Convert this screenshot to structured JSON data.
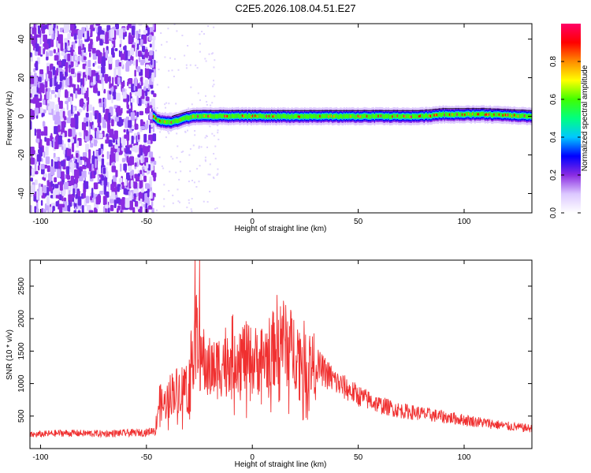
{
  "title": "C2E5.2026.108.04.51.E27",
  "chart_data": [
    {
      "type": "heatmap",
      "xlabel": "Height of straight line (km)",
      "ylabel": "Frequency (Hz)",
      "xlim": [
        -105,
        132
      ],
      "ylim": [
        -50,
        48
      ],
      "xticks": [
        -100,
        -50,
        0,
        50,
        100
      ],
      "yticks": [
        -40,
        -20,
        0,
        20,
        40
      ],
      "grid": false,
      "colorbar": {
        "label": "Normalized spectral amplitude",
        "ticks": [
          0.0,
          0.2,
          0.4,
          0.6,
          0.8
        ],
        "range": [
          0,
          1
        ],
        "colors": [
          "#ffffff",
          "#dcc8ff",
          "#8a2be2",
          "#0000ff",
          "#00c8ff",
          "#00ff80",
          "#40ff00",
          "#ffff00",
          "#ff8c00",
          "#ff0000",
          "#ff0066"
        ]
      },
      "noise_region_x": [
        -105,
        -46
      ],
      "ridge": {
        "x": [
          -47,
          -45,
          -42,
          -38,
          -35,
          -32,
          -28,
          -20,
          -10,
          0,
          10,
          20,
          30,
          40,
          50,
          60,
          70,
          80,
          90,
          100,
          110,
          120,
          132
        ],
        "y": [
          0,
          -2,
          -3,
          -3,
          -2,
          -1,
          0,
          0,
          0,
          0,
          0,
          0,
          0,
          0,
          0,
          0,
          0,
          0,
          1,
          1,
          1,
          0.5,
          0
        ]
      }
    },
    {
      "type": "line",
      "xlabel": "Height of straight line (km)",
      "ylabel": "SNR (10 * v/v)",
      "xlim": [
        -105,
        132
      ],
      "ylim": [
        0,
        2900
      ],
      "xticks": [
        -100,
        -50,
        0,
        50,
        100
      ],
      "yticks": [
        500,
        1000,
        1500,
        2000,
        2500
      ],
      "grid": false,
      "color": "#f03030",
      "envelope": {
        "x": [
          -105,
          -90,
          -70,
          -50,
          -46,
          -44,
          -42,
          -38,
          -34,
          -30,
          -27,
          -25,
          -22,
          -18,
          -14,
          -10,
          -5,
          0,
          5,
          10,
          13,
          16,
          20,
          25,
          30,
          40,
          50,
          60,
          70,
          80,
          90,
          100,
          110,
          120,
          132
        ],
        "y": [
          220,
          250,
          240,
          260,
          300,
          800,
          700,
          950,
          1000,
          1100,
          1900,
          1700,
          1350,
          1300,
          1450,
          1600,
          1550,
          1450,
          1500,
          1650,
          2000,
          1700,
          1650,
          1500,
          1350,
          1050,
          850,
          700,
          610,
          560,
          510,
          460,
          410,
          360,
          320
        ]
      }
    }
  ]
}
